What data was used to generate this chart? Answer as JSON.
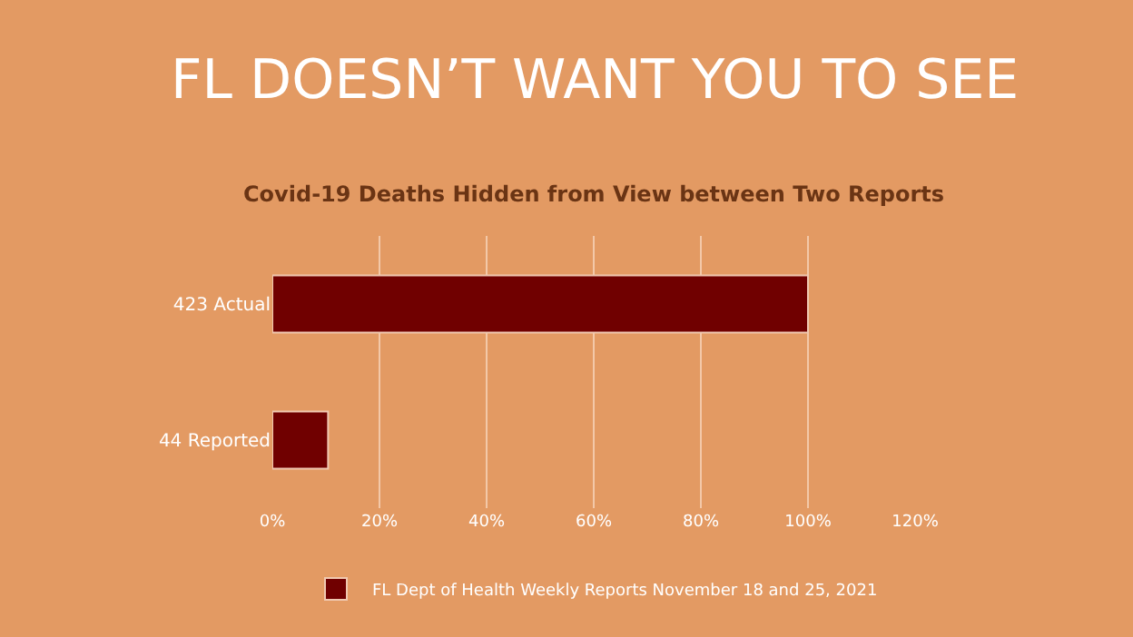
{
  "chart_data": {
    "type": "bar",
    "orientation": "horizontal",
    "title": "FL DOESN’T WANT YOU TO SEE",
    "subtitle": "Covid-19 Deaths Hidden from View between Two Reports",
    "categories": [
      "423 Actual",
      "44 Reported"
    ],
    "series": [
      {
        "name": "FL Dept of Health Weekly Reports November 18 and 25, 2021",
        "color": "#700000",
        "values": [
          100,
          10.4
        ]
      }
    ],
    "xlim": [
      0,
      120
    ],
    "xticks": [
      {
        "value": 0,
        "label": "0%"
      },
      {
        "value": 20,
        "label": "20%"
      },
      {
        "value": 40,
        "label": "40%"
      },
      {
        "value": 60,
        "label": "60%"
      },
      {
        "value": 80,
        "label": "80%"
      },
      {
        "value": 100,
        "label": "100%"
      },
      {
        "value": 120,
        "label": "120%"
      }
    ],
    "grid": "x",
    "legend": "bottom"
  }
}
